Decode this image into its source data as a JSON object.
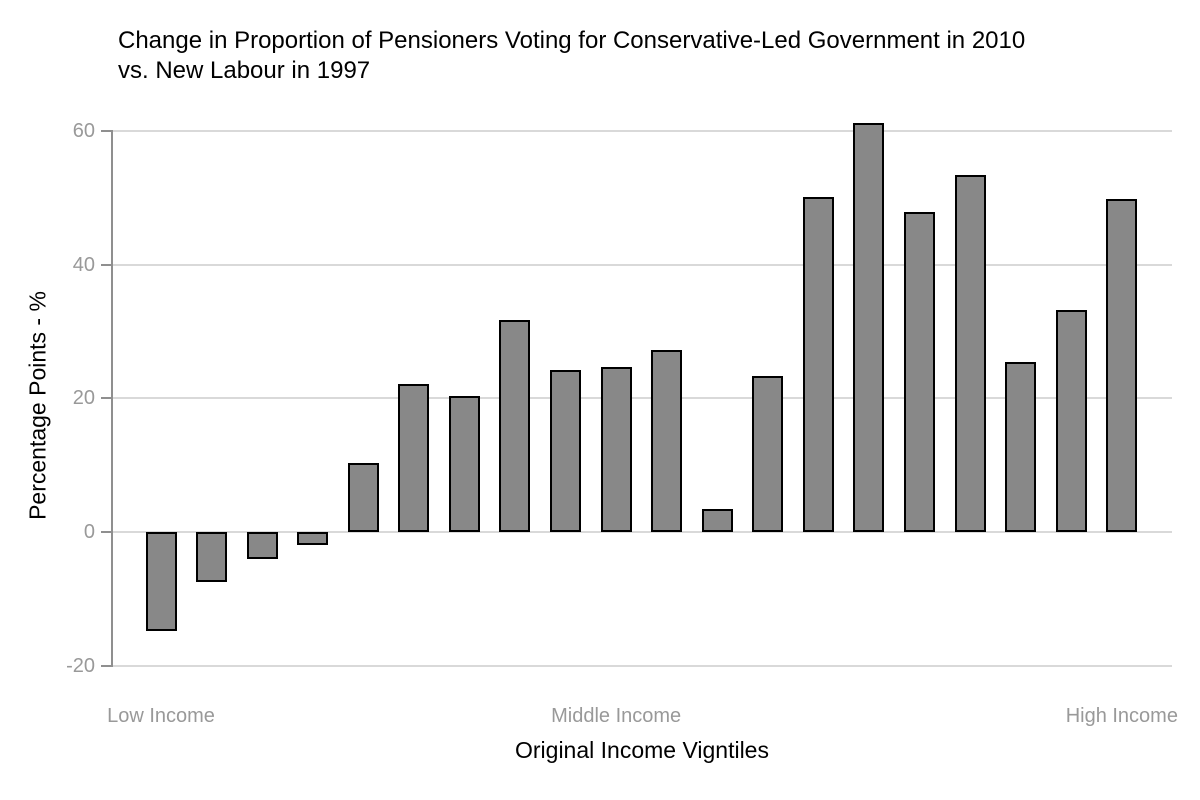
{
  "chart_data": {
    "type": "bar",
    "title": "Change in Proportion of Pensioners Voting for Conservative-Led Government in 2010 vs. New Labour in 1997",
    "title_lines": [
      "Change in Proportion of Pensioners Voting for Conservative-Led Government in 2010",
      "vs. New Labour in 1997"
    ],
    "xlabel": "Original Income Vigntiles",
    "ylabel": "Percentage Points - %",
    "categories": [
      1,
      2,
      3,
      4,
      5,
      6,
      7,
      8,
      9,
      10,
      11,
      12,
      13,
      14,
      15,
      16,
      17,
      18,
      19,
      20
    ],
    "values": [
      -14.8,
      -7.5,
      -4.1,
      -1.9,
      10.3,
      22.1,
      20.3,
      31.7,
      24.3,
      24.7,
      27.3,
      3.4,
      23.3,
      50.1,
      61.3,
      47.9,
      53.4,
      25.5,
      33.2,
      49.8
    ],
    "ylim": [
      -20,
      60
    ],
    "yticks": [
      60,
      40,
      20,
      0,
      -20
    ],
    "ytick_labels": [
      "60",
      "40",
      "20",
      "0",
      "-20"
    ],
    "xticks": [
      {
        "label": "Low Income",
        "category": 1
      },
      {
        "label": "Middle Income",
        "category": 10
      },
      {
        "label": "High Income",
        "category": 20
      }
    ],
    "grid": "horizontal",
    "legend": "none",
    "colors": {
      "bar_fill": "#888888",
      "bar_stroke": "#000000",
      "gridline": "#d9d9d9",
      "axis_line": "#8f8f8f",
      "tick_label": "#999999",
      "title_text": "#000000"
    }
  }
}
